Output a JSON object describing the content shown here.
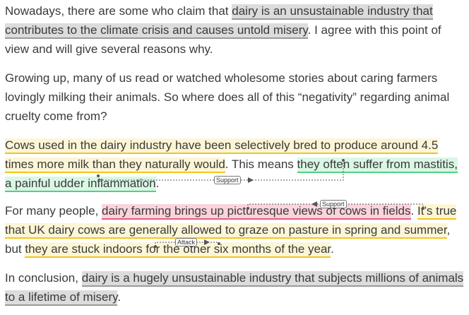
{
  "paragraphs": {
    "p1": {
      "s1_pre": "Nowadays, there are some who claim that ",
      "s1_hl": "dairy is an unsustainable industry that contributes to the climate crisis and causes untold misery",
      "s1_post": ". I agree with this point of view and will give several reasons why."
    },
    "p2": {
      "text": "Growing up, many of us read or watched wholesome stories about caring farmers lovingly milking their animals. So where does all of this “negativity” regarding animal cruelty come from?"
    },
    "p3": {
      "premise": "Cows used in the dairy industry have been selectively bred to produce around 4.5 times more milk than they naturally would",
      "mid": ". This means ",
      "claim": "they often suffer from mastitis, a painful udder inflammation",
      "end": "."
    },
    "p4": {
      "pre": "For many people, ",
      "claim": "dairy farming brings up picturesque views of cows in fields",
      "mid": ". ",
      "premise1": "It’s true that UK dairy cows are generally allowed to graze on pasture in spring and summer",
      "mid2": ", but ",
      "premise2": "they are stuck indoors for the other six months of the year",
      "end": "."
    },
    "p5": {
      "pre": "In conclusion, ",
      "claim": "dairy is a hugely unsustainable industry that subjects millions of animals to a lifetime of misery",
      "end": "."
    }
  },
  "relations": {
    "support1": "Support",
    "support2": "Support",
    "attack1": "Attack"
  },
  "colors": {
    "major_claim": "#dcdcdc",
    "premise": "#fdf6d6",
    "claim_green": "#d9f7e4",
    "claim_red": "#fad4dc"
  }
}
